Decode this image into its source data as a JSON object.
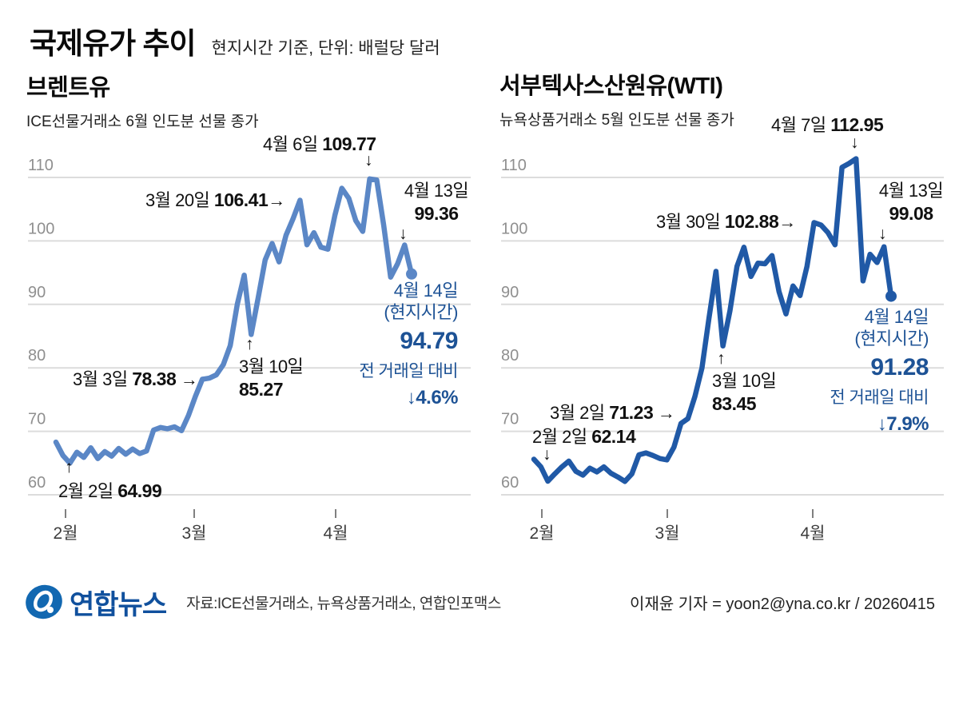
{
  "header": {
    "title": "국제유가 추이",
    "subtitle": "현지시간 기준, 단위: 배럴당 달러"
  },
  "chart_data": [
    {
      "type": "line",
      "title": "브렌트유",
      "subtitle": "ICE선물거래소 6월 인도분 선물 종가",
      "ylim": [
        60,
        110
      ],
      "yticks": [
        110,
        100,
        90,
        80,
        70,
        60
      ],
      "xticks": [
        "2월",
        "3월",
        "4월"
      ],
      "grid": true,
      "line_color": "#5b87c6",
      "series": [
        {
          "name": "브렌트유 선물 종가",
          "values": [
            68.3,
            66.2,
            64.99,
            66.7,
            65.9,
            67.4,
            65.7,
            66.8,
            66.1,
            67.3,
            66.4,
            67.2,
            66.5,
            66.9,
            70.2,
            70.6,
            70.4,
            70.7,
            70.1,
            72.5,
            75.5,
            78.2,
            78.38,
            78.9,
            80.5,
            83.5,
            90.0,
            94.6,
            85.27,
            91.0,
            97.0,
            99.6,
            96.7,
            100.9,
            103.5,
            106.41,
            99.4,
            101.3,
            99.0,
            98.7,
            104.0,
            108.3,
            106.7,
            103.2,
            101.5,
            109.77,
            109.6,
            102.5,
            94.3,
            96.4,
            99.36,
            94.79
          ]
        }
      ],
      "annotations": [
        {
          "date": "4월 6일 ",
          "value": "109.77",
          "marker": "↓"
        },
        {
          "date": "3월 20일 ",
          "value": "106.41",
          "suffix": "→"
        },
        {
          "date": "4월 13일",
          "value": "99.36",
          "marker": "↓"
        },
        {
          "date": "3월 3일 ",
          "value": "78.38",
          "suffix": " →"
        },
        {
          "date": "3월 10일",
          "value": "85.27",
          "marker": "↑"
        },
        {
          "date": "2월 2일 ",
          "value": "64.99",
          "marker": "↑"
        }
      ],
      "latest": {
        "date": "4월 14일",
        "note": "(현지시간)",
        "value": "94.79",
        "compare_label": "전 거래일 대비",
        "change": "↓4.6%",
        "color": "#1d5295"
      }
    },
    {
      "type": "line",
      "title": "서부텍사스산원유(WTI)",
      "subtitle": "뉴욕상품거래소 5월 인도분 선물 종가",
      "ylim": [
        60,
        110
      ],
      "yticks": [
        110,
        100,
        90,
        80,
        70,
        60
      ],
      "xticks": [
        "2월",
        "3월",
        "4월"
      ],
      "grid": true,
      "line_color": "#2059a6",
      "series": [
        {
          "name": "WTI 선물 종가",
          "values": [
            65.6,
            64.4,
            62.14,
            63.3,
            64.4,
            65.3,
            63.7,
            63.1,
            64.2,
            63.6,
            64.4,
            63.4,
            62.8,
            62.1,
            63.3,
            66.3,
            66.6,
            66.2,
            65.7,
            65.5,
            67.5,
            71.23,
            72.0,
            75.5,
            80.0,
            87.8,
            95.2,
            83.45,
            89.0,
            96.0,
            99.0,
            94.4,
            96.5,
            96.4,
            97.7,
            92.0,
            88.5,
            92.9,
            91.4,
            96.0,
            102.88,
            102.5,
            101.3,
            99.4,
            111.6,
            112.2,
            112.95,
            93.7,
            97.9,
            96.6,
            99.08,
            91.28
          ]
        }
      ],
      "annotations": [
        {
          "date": "4월 7일 ",
          "value": "112.95",
          "marker": "↓"
        },
        {
          "date": "3월 30일 ",
          "value": "102.88",
          "suffix": "→"
        },
        {
          "date": "4월 13일",
          "value": "99.08",
          "marker": "↓"
        },
        {
          "date": "3월 2일 ",
          "value": "71.23",
          "suffix": " →"
        },
        {
          "date": "3월 10일",
          "value": "83.45",
          "marker": "↑"
        },
        {
          "date": "2월 2일 ",
          "value": "62.14",
          "marker": "↓"
        }
      ],
      "latest": {
        "date": "4월 14일",
        "note": "(현지시간)",
        "value": "91.28",
        "compare_label": "전 거래일 대비",
        "change": "↓7.9%",
        "color": "#1d5295"
      }
    }
  ],
  "footer": {
    "logo_text": "연합뉴스",
    "source": "자료:ICE선물거래소, 뉴욕상품거래소, 연합인포맥스",
    "credit": "이재윤 기자 = yoon2@yna.co.kr / 20260415"
  }
}
